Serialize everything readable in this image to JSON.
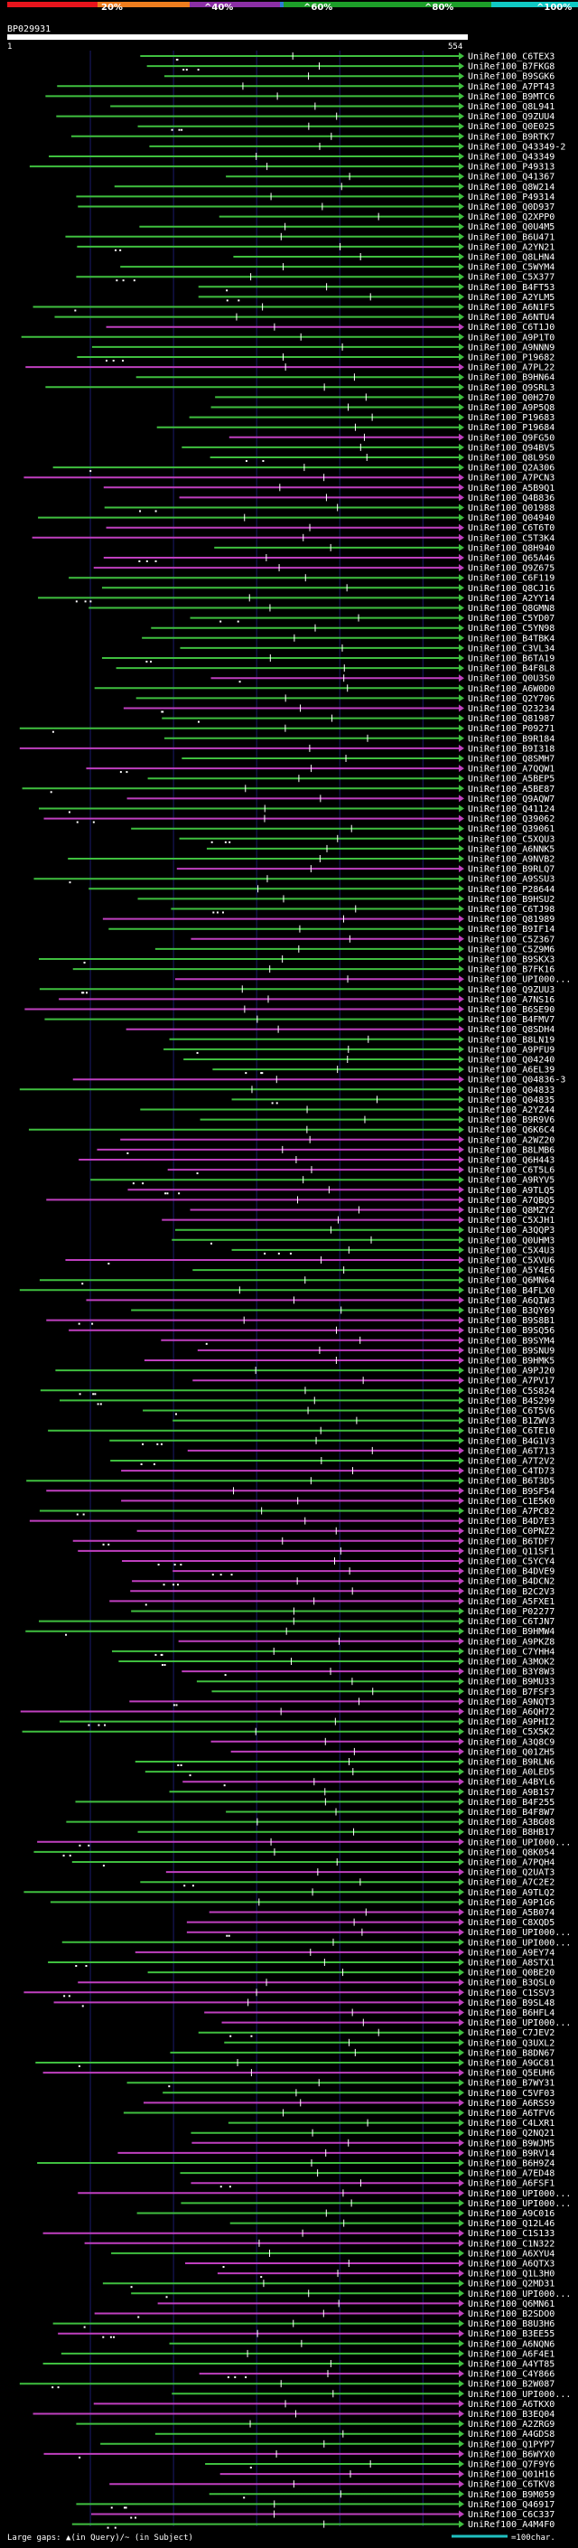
{
  "query_id": "BP029931",
  "scale": {
    "title_marks": [
      "20%",
      "^40%",
      "^60%",
      "^80%",
      "^100%"
    ],
    "colors": [
      "#e8141c",
      "#ee7d1e",
      "#8b2fa5",
      "#2e7bd7",
      "#1d9e29",
      "#10c9c4"
    ],
    "start_label": "1",
    "end_label": "554"
  },
  "legend": {
    "text_left": "Large gaps: ▲(in Query)/~ (in Subject)",
    "text_right": "=100char.",
    "line_color": "#20c0c0"
  },
  "colors": {
    "green": "#3fbf3f",
    "magenta": "#bf3fbf",
    "grid": "#1a1a6a",
    "background": "#000000"
  },
  "chart_data": {
    "type": "alignment-overview",
    "query_length": 554,
    "labels": [
      "UniRef100_C6TEX3",
      "UniRef100_B7FKG8",
      "UniRef100_B9SGK6",
      "UniRef100_A7PT43",
      "UniRef100_B9MTC6",
      "UniRef100_Q8L941",
      "UniRef100_Q9ZUU4",
      "UniRef100_Q0E025",
      "UniRef100_B9RTK7",
      "UniRef100_Q43349-2",
      "UniRef100_Q43349",
      "UniRef100_P49313",
      "UniRef100_Q41367",
      "UniRef100_Q8W214",
      "UniRef100_P49314",
      "UniRef100_Q0D937",
      "UniRef100_Q2XPP0",
      "UniRef100_Q0U4M5",
      "UniRef100_B6U471",
      "UniRef100_A2YN21",
      "UniRef100_Q8LHN4",
      "UniRef100_C5WYM4",
      "UniRef100_C5X377",
      "UniRef100_B4FT53",
      "UniRef100_A2YLM5",
      "UniRef100_A6N1F5",
      "UniRef100_A6NTU4",
      "UniRef100_C6T1J0",
      "UniRef100_A9P1T0",
      "UniRef100_A9NNN9",
      "UniRef100_P19682",
      "UniRef100_A7PL22",
      "UniRef100_B9HN64",
      "UniRef100_Q9SRL3",
      "UniRef100_Q0H270",
      "UniRef100_A9P5Q8",
      "UniRef100_P19683",
      "UniRef100_P19684",
      "UniRef100_Q9FG50",
      "UniRef100_Q94BV5",
      "UniRef100_Q8L9S0",
      "UniRef100_Q2A306",
      "UniRef100_A7PCN3",
      "UniRef100_A5B9Q1",
      "UniRef100_Q4B836",
      "UniRef100_Q01988",
      "UniRef100_Q04940",
      "UniRef100_C6T6T0",
      "UniRef100_C5T3K4",
      "UniRef100_Q8H940",
      "UniRef100_Q65A46",
      "UniRef100_Q9Z675",
      "UniRef100_C6F119",
      "UniRef100_Q8CJ16",
      "UniRef100_A2YY14",
      "UniRef100_Q8GMN8",
      "UniRef100_C5YD07",
      "UniRef100_C5YN98",
      "UniRef100_B4TBK4",
      "UniRef100_C3VL34",
      "UniRef100_B6TA19",
      "UniRef100_B4F8L8",
      "UniRef100_Q0U3S0",
      "UniRef100_A6W0D0",
      "UniRef100_Q2Y706",
      "UniRef100_Q23234",
      "UniRef100_Q81987",
      "UniRef100_P09271",
      "UniRef100_B9R184",
      "UniRef100_B9I318",
      "UniRef100_Q8SMH7",
      "UniRef100_A7QQW1",
      "UniRef100_A5BEP5",
      "UniRef100_A5BE87",
      "UniRef100_Q9AQW7",
      "UniRef100_Q41124",
      "UniRef100_Q39062",
      "UniRef100_Q39061",
      "UniRef100_C5XQU3",
      "UniRef100_A6NNK5",
      "UniRef100_A9NVB2",
      "UniRef100_B9RLQ7",
      "UniRef100_A9SSU3",
      "UniRef100_P28644",
      "UniRef100_B9HSU2",
      "UniRef100_C6TJ98",
      "UniRef100_Q81989",
      "UniRef100_B9IF14",
      "UniRef100_C5Z367",
      "UniRef100_C5Z9M6",
      "UniRef100_B9SKX3",
      "UniRef100_B7FK16",
      "UniRef100_UPI000...",
      "UniRef100_Q9ZUU3",
      "UniRef100_A7NS16",
      "UniRef100_B6SE90",
      "UniRef100_B4FMV7",
      "UniRef100_Q8SDH4",
      "UniRef100_B8LN19",
      "UniRef100_A9PFU9",
      "UniRef100_Q04240",
      "UniRef100_A6EL39",
      "UniRef100_Q04836-3",
      "UniRef100_Q04833",
      "UniRef100_Q04835",
      "UniRef100_A2YZ44",
      "UniRef100_B9R9V6",
      "UniRef100_Q6K6C4",
      "UniRef100_A2WZ20",
      "UniRef100_B8LMB6",
      "UniRef100_Q6H443",
      "UniRef100_C6T5L6",
      "UniRef100_A9RYV5",
      "UniRef100_A9TLQ5",
      "UniRef100_A7QBQ5",
      "UniRef100_Q8MZY2",
      "UniRef100_C5XJH1",
      "UniRef100_A3QQP3",
      "UniRef100_Q0UHM3",
      "UniRef100_C5X4U3",
      "UniRef100_C5XVU6",
      "UniRef100_A5Y4E6",
      "UniRef100_Q6MN64",
      "UniRef100_B4FLX0",
      "UniRef100_A6QIW3",
      "UniRef100_B3QY69",
      "UniRef100_B9S8B1",
      "UniRef100_B9SQ56",
      "UniRef100_B9SYM4",
      "UniRef100_B9SNU9",
      "UniRef100_B9HMK5",
      "UniRef100_A9PJ20",
      "UniRef100_A7PV17",
      "UniRef100_C5S824",
      "UniRef100_B4S299",
      "UniRef100_C6T5V6",
      "UniRef100_B1ZWV3",
      "UniRef100_C6TE10",
      "UniRef100_B4G1V3",
      "UniRef100_A6T713",
      "UniRef100_A7T2V2",
      "UniRef100_C4TD73",
      "UniRef100_B6T3D5",
      "UniRef100_B9SF54",
      "UniRef100_C1E5K0",
      "UniRef100_A7PC82",
      "UniRef100_B4D7E3",
      "UniRef100_C0PNZ2",
      "UniRef100_B6TDF7",
      "UniRef100_Q11SF1",
      "UniRef100_C5YCY4",
      "UniRef100_B4DVE9",
      "UniRef100_B4DCN2",
      "UniRef100_B2C2V3",
      "UniRef100_A5FXE1",
      "UniRef100_P02277",
      "UniRef100_C6TJN7",
      "UniRef100_B9HMW4",
      "UniRef100_A9PKZ8",
      "UniRef100_C7YHH4",
      "UniRef100_A3MOK2",
      "UniRef100_B3Y8W3",
      "UniRef100_B9MU33",
      "UniRef100_B7FSF3",
      "UniRef100_A9NQT3",
      "UniRef100_A6QH72",
      "UniRef100_A9PHI2",
      "UniRef100_C5X5K2",
      "UniRef100_A3Q8C9",
      "UniRef100_Q01ZH5",
      "UniRef100_B9RLN6",
      "UniRef100_A0LED5",
      "UniRef100_A4BYL6",
      "UniRef100_A9B1S7",
      "UniRef100_B4F255",
      "UniRef100_B4F8W7",
      "UniRef100_A3BG08",
      "UniRef100_B8HB17",
      "UniRef100_UPI000...",
      "UniRef100_Q8K054",
      "UniRef100_A7PQH4",
      "UniRef100_Q2UAT3",
      "UniRef100_A7C2E2",
      "UniRef100_A9TLQ2",
      "UniRef100_A9P1G6",
      "UniRef100_A5B074",
      "UniRef100_C8XQD5",
      "UniRef100_UPI000...",
      "UniRef100_UPI000...",
      "UniRef100_A9EY74",
      "UniRef100_A8STX1",
      "UniRef100_Q0BE20",
      "UniRef100_B3QSL0",
      "UniRef100_C1SSV3",
      "UniRef100_B9SL48",
      "UniRef100_B6HFL4",
      "UniRef100_UPI000...",
      "UniRef100_C7JEV2",
      "UniRef100_Q3UXL2",
      "UniRef100_B8DN67",
      "UniRef100_A9GC81",
      "UniRef100_Q5EUH6",
      "UniRef100_B7WY31",
      "UniRef100_C5VF03",
      "UniRef100_A6RSS9",
      "UniRef100_A6TFV6",
      "UniRef100_C4LXR1",
      "UniRef100_Q2NQ21",
      "UniRef100_B9WJM5",
      "UniRef100_B9RV14",
      "UniRef100_B6H9Z4",
      "UniRef100_A7ED48",
      "UniRef100_A6FSF1",
      "UniRef100_UPI000...",
      "UniRef100_UPI000...",
      "UniRef100_A9C016",
      "UniRef100_Q12L46",
      "UniRef100_C1S133",
      "UniRef100_C1N322",
      "UniRef100_A6XYU4",
      "UniRef100_A6QTX3",
      "UniRef100_Q1L3H0",
      "UniRef100_Q2MD31",
      "UniRef100_UPI000...",
      "UniRef100_Q6MN61",
      "UniRef100_B2SDO0",
      "UniRef100_B8U3H6",
      "UniRef100_B3EE55",
      "UniRef100_A6NQN6",
      "UniRef100_A6F4E1",
      "UniRef100_A4YT85",
      "UniRef100_C4Y866",
      "UniRef100_B2W087",
      "UniRef100_UPI000...",
      "UniRef100_A6TKX0",
      "UniRef100_B3EQ04",
      "UniRef100_A2ZRG9",
      "UniRef100_A4GDS8",
      "UniRef100_Q1PYP7",
      "UniRef100_B6WYX0",
      "UniRef100_Q7F9Y6",
      "UniRef100_Q01H16",
      "UniRef100_C6TKV8",
      "UniRef100_B9M059",
      "UniRef100_Q46917",
      "UniRef100_C6C337",
      "UniRef100_A4M4F0"
    ]
  }
}
